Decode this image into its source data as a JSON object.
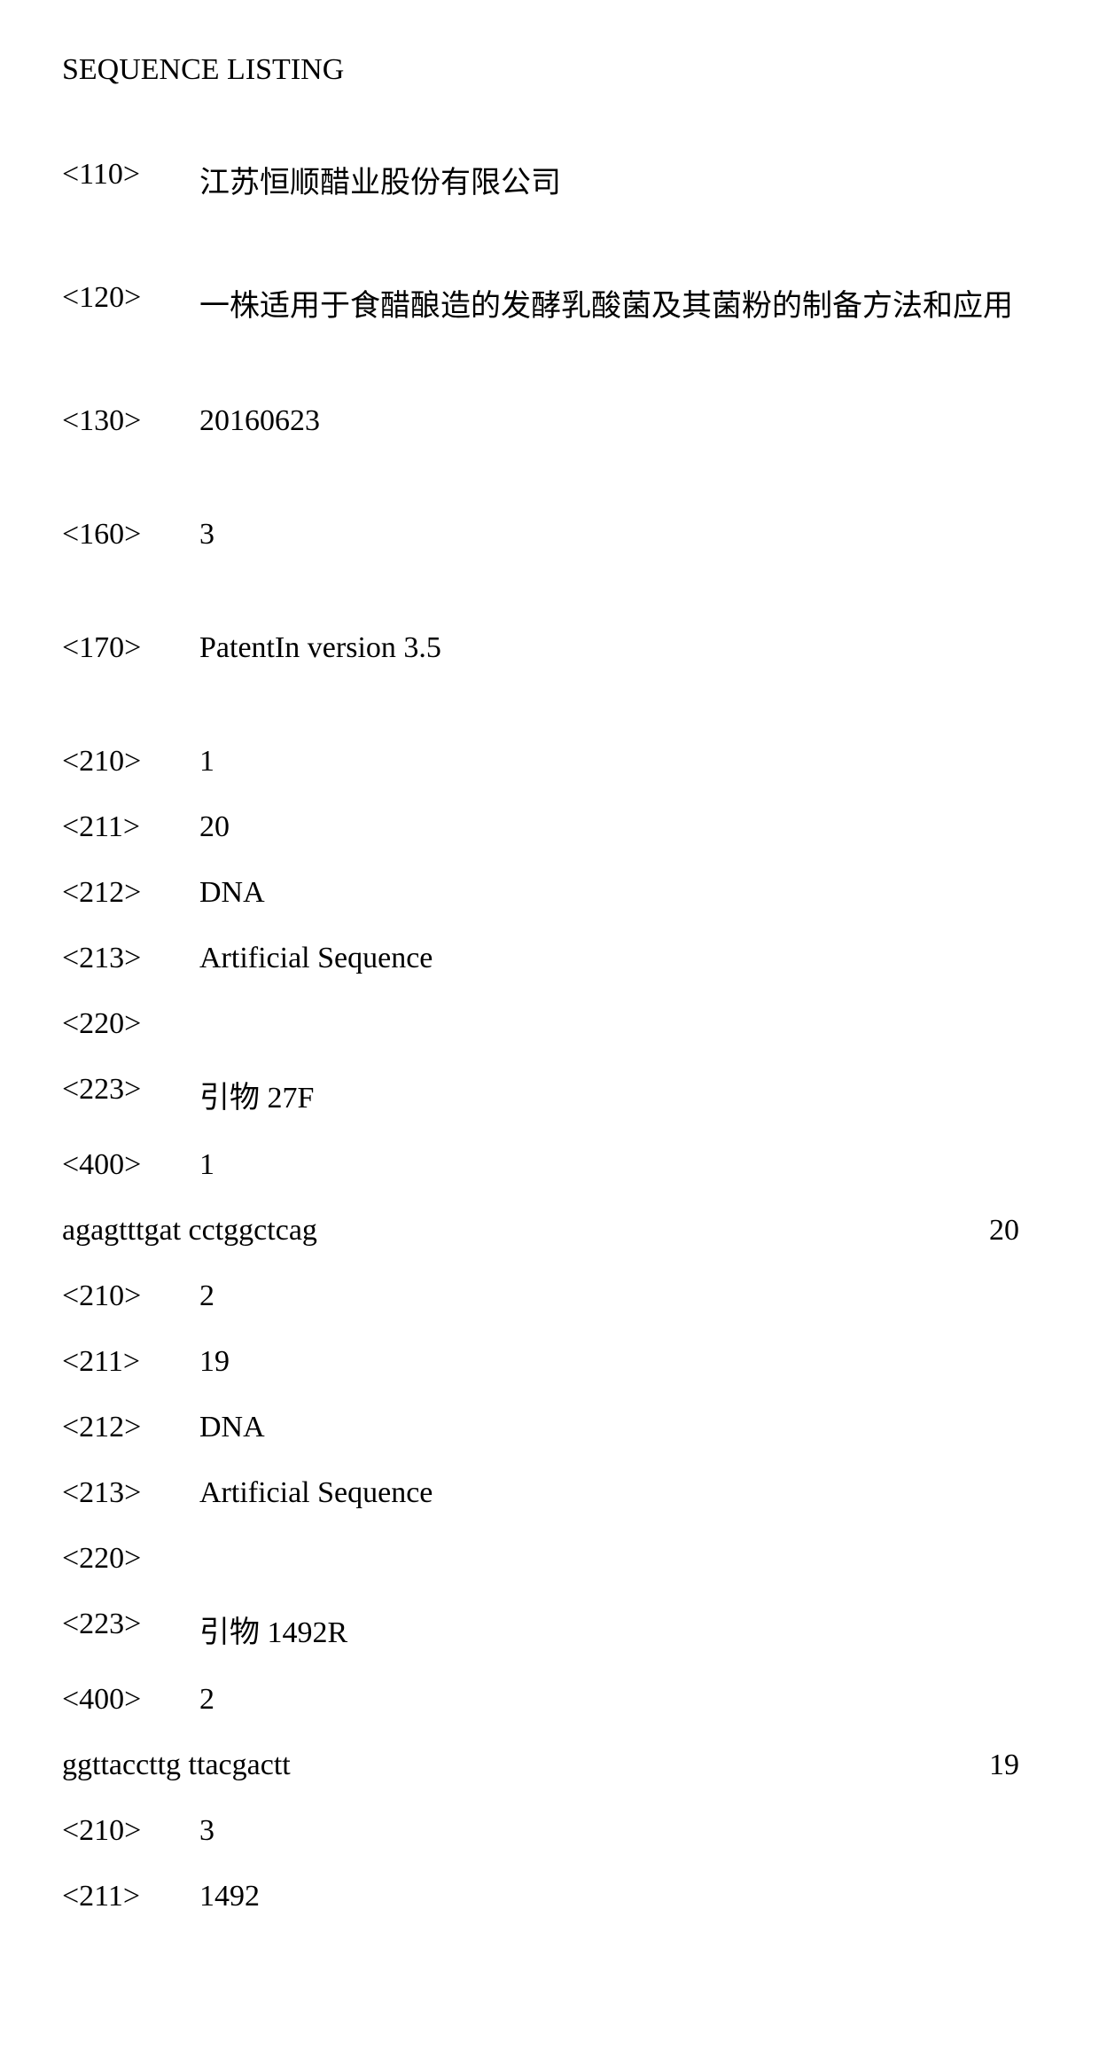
{
  "title": "SEQUENCE LISTING",
  "header": {
    "tag110": "<110>",
    "val110": "江苏恒顺醋业股份有限公司",
    "tag120": "<120>",
    "val120": "一株适用于食醋酿造的发酵乳酸菌及其菌粉的制备方法和应用",
    "tag130": "<130>",
    "val130": "20160623",
    "tag160": "<160>",
    "val160": "3",
    "tag170": "<170>",
    "val170": "PatentIn version 3.5"
  },
  "seq1": {
    "tag210": "<210>",
    "val210": "1",
    "tag211": "<211>",
    "val211": "20",
    "tag212": "<212>",
    "val212": "DNA",
    "tag213": "<213>",
    "val213": "Artificial Sequence",
    "tag220": "<220>",
    "val220": "",
    "tag223": "<223>",
    "val223": "引物 27F",
    "tag400": "<400>",
    "val400": "1",
    "sequence": "agagtttgat cctggctcag",
    "length": "20"
  },
  "seq2": {
    "tag210": "<210>",
    "val210": "2",
    "tag211": "<211>",
    "val211": "19",
    "tag212": "<212>",
    "val212": "DNA",
    "tag213": "<213>",
    "val213": "Artificial Sequence",
    "tag220": "<220>",
    "val220": "",
    "tag223": "<223>",
    "val223": "引物 1492R",
    "tag400": "<400>",
    "val400": "2",
    "sequence": "ggttaccttg ttacgactt",
    "length": "19"
  },
  "seq3": {
    "tag210": "<210>",
    "val210": "3",
    "tag211": "<211>",
    "val211": "1492"
  }
}
